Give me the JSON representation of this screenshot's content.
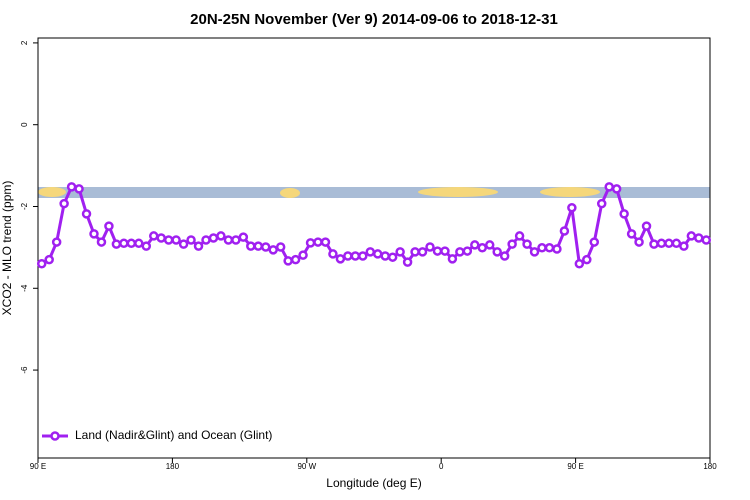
{
  "chart_data": {
    "type": "line",
    "title": "20N-25N November (Ver 9)   2014-09-06 to 2018-12-31",
    "x_label": "Longitude (deg E)",
    "y_label": "XCO2 - MLO trend (ppm)",
    "xlim": [
      90,
      540
    ],
    "xticks": [
      {
        "value": 90,
        "label": "90 E"
      },
      180,
      {
        "value": 270,
        "label": "90 W"
      },
      {
        "value": 360,
        "label": "0"
      },
      {
        "value": 450,
        "label": "90 E"
      },
      {
        "value": 540,
        "label": "180"
      }
    ],
    "ylim": [
      -8.15,
      2.12
    ],
    "yticks": [
      -6,
      -4,
      -2,
      0,
      2
    ],
    "legend": "bottom-left",
    "series": [
      {
        "name": "Land (Nadir&Glint) and Ocean (Glint)",
        "color": "#a020f0",
        "x": [
          92.5,
          97.5,
          102.5,
          107.5,
          112.5,
          117.5,
          122.5,
          127.5,
          132.5,
          137.5,
          142.5,
          147.5,
          152.5,
          157.5,
          162.5,
          167.5,
          172.5,
          177.5,
          182.5,
          187.5,
          192.5,
          197.5,
          202.5,
          207.5,
          212.5,
          217.5,
          222.5,
          227.5,
          232.5,
          237.5,
          242.5,
          247.5,
          252.5,
          257.5,
          262.5,
          267.5,
          272.5,
          277.5,
          282.5,
          287.5,
          292.5,
          297.5,
          302.5,
          307.5,
          312.5,
          317.5,
          322.5,
          327.5,
          332.5,
          337.5,
          342.5,
          347.5,
          352.5,
          357.5,
          362.5,
          367.5,
          372.5,
          377.5,
          382.5,
          387.5,
          392.5,
          397.5,
          402.5,
          407.5,
          412.5,
          417.5,
          422.5,
          427.5,
          432.5,
          437.5,
          442.5,
          447.5,
          452.5,
          457.5,
          462.5,
          467.5,
          472.5,
          477.5,
          482.5,
          487.5,
          492.5,
          497.5,
          502.5,
          507.5,
          512.5,
          517.5,
          522.5,
          527.5,
          532.5,
          537.5
        ],
        "values": [
          -3.4,
          -3.3,
          -2.87,
          -1.93,
          -1.52,
          -1.57,
          -2.18,
          -2.67,
          -2.87,
          -2.48,
          -2.92,
          -2.9,
          -2.9,
          -2.9,
          -2.97,
          -2.72,
          -2.77,
          -2.82,
          -2.82,
          -2.92,
          -2.82,
          -2.97,
          -2.82,
          -2.77,
          -2.72,
          -2.82,
          -2.82,
          -2.75,
          -2.97,
          -2.97,
          -2.99,
          -3.06,
          -2.99,
          -3.33,
          -3.3,
          -3.19,
          -2.89,
          -2.87,
          -2.87,
          -3.16,
          -3.28,
          -3.21,
          -3.21,
          -3.21,
          -3.11,
          -3.16,
          -3.21,
          -3.24,
          -3.11,
          -3.36,
          -3.11,
          -3.11,
          -2.99,
          -3.09,
          -3.09,
          -3.28,
          -3.11,
          -3.09,
          -2.94,
          -3.01,
          -2.94,
          -3.11,
          -3.21,
          -2.92,
          -2.72,
          -2.92,
          -3.11,
          -3.01,
          -3.01,
          -3.04,
          -2.6,
          -2.03,
          -3.4,
          -3.3,
          -2.87,
          -1.93,
          -1.52,
          -1.57,
          -2.18,
          -2.67,
          -2.87,
          -2.48,
          -2.92,
          -2.9,
          -2.9,
          -2.9,
          -2.97,
          -2.72,
          -2.77,
          -2.82
        ]
      }
    ]
  }
}
